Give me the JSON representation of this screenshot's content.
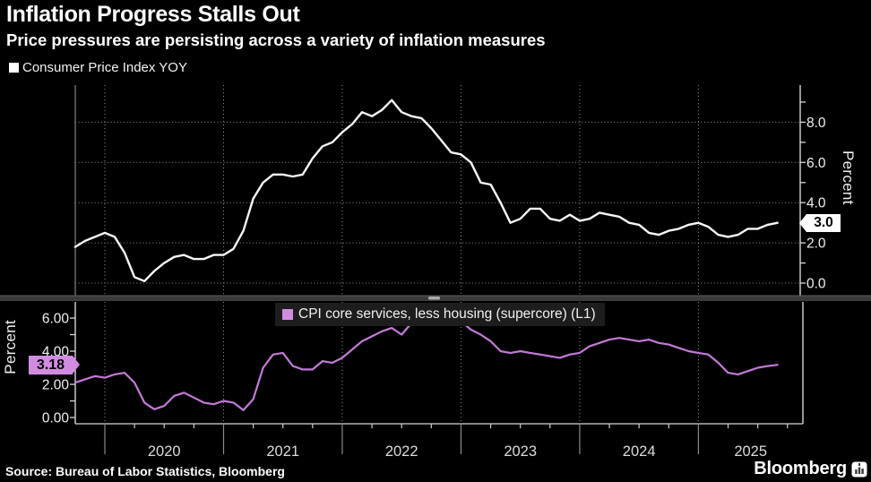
{
  "header": {
    "title": "Inflation Progress Stalls Out",
    "subtitle": "Price pressures are persisting across a variety of inflation measures"
  },
  "source": {
    "text": "Source: Bureau of Labor Statistics, Bloomberg"
  },
  "branding": {
    "wordmark": "Bloomberg",
    "icon": "bloomberg-terminal-icon"
  },
  "colors": {
    "background": "#000000",
    "cpi_line": "#f7f7f7",
    "supercore_line": "#c47ad8",
    "supercore_badge": "#d18ce2",
    "cpi_badge": "#ffffff",
    "grid": "#8f8f8f",
    "axis_line": "#d6d6d6",
    "left_spine_top_panel": "#6f6f6f",
    "separator": "#3a3a3a",
    "legend_bg": "#1d1d1d",
    "axis_text": "#f0f0f0",
    "year_text": "#dcdcdc"
  },
  "chart_data": [
    {
      "type": "line",
      "panel": "top",
      "series_name": "Consumer Price Index YOY",
      "frequency": "monthly",
      "x_start": "2019-10",
      "x_end": "2025-09",
      "x_tick_years": [
        "2020",
        "2021",
        "2022",
        "2023",
        "2024",
        "2025"
      ],
      "values": [
        1.8,
        2.1,
        2.3,
        2.5,
        2.3,
        1.5,
        0.3,
        0.1,
        0.6,
        1.0,
        1.3,
        1.4,
        1.2,
        1.2,
        1.4,
        1.4,
        1.7,
        2.6,
        4.2,
        5.0,
        5.4,
        5.4,
        5.3,
        5.4,
        6.2,
        6.8,
        7.0,
        7.5,
        7.9,
        8.5,
        8.3,
        8.6,
        9.1,
        8.5,
        8.3,
        8.2,
        7.7,
        7.1,
        6.5,
        6.4,
        6.0,
        5.0,
        4.9,
        4.0,
        3.0,
        3.2,
        3.7,
        3.7,
        3.2,
        3.1,
        3.4,
        3.1,
        3.2,
        3.5,
        3.4,
        3.3,
        3.0,
        2.9,
        2.5,
        2.4,
        2.6,
        2.7,
        2.9,
        3.0,
        2.8,
        2.4,
        2.3,
        2.4,
        2.7,
        2.7,
        2.9,
        3.0
      ],
      "last_value_label": "3.0",
      "ylabel": "Percent",
      "ylabel_side": "right",
      "axis_side": "right",
      "ylim": [
        -0.8,
        9.8
      ],
      "yticks": [
        0,
        2,
        4,
        6,
        8
      ],
      "ytick_labels": [
        "0.0",
        "2.0",
        "4.0",
        "6.0",
        "8.0"
      ],
      "minor_ytick_step": 1,
      "grid": "horizontal-and-vertical-dotted",
      "legend_position": "top-left",
      "line_color": "#f7f7f7"
    },
    {
      "type": "line",
      "panel": "bottom",
      "series_name": "CPI core services, less housing (supercore) (L1)",
      "frequency": "monthly",
      "x_start": "2019-10",
      "x_end": "2025-09",
      "x_tick_years": [
        "2020",
        "2021",
        "2022",
        "2023",
        "2024",
        "2025"
      ],
      "values": [
        2.1,
        2.3,
        2.5,
        2.4,
        2.6,
        2.7,
        2.1,
        0.9,
        0.5,
        0.7,
        1.3,
        1.5,
        1.2,
        0.9,
        0.8,
        1.0,
        0.9,
        0.45,
        1.1,
        3.0,
        3.8,
        3.9,
        3.1,
        2.9,
        2.9,
        3.4,
        3.3,
        3.6,
        4.1,
        4.6,
        4.9,
        5.2,
        5.4,
        5.0,
        5.7,
        6.3,
        6.5,
        6.3,
        6.1,
        5.8,
        5.3,
        5.0,
        4.6,
        4.0,
        3.9,
        4.0,
        3.9,
        3.8,
        3.7,
        3.6,
        3.8,
        3.9,
        4.3,
        4.5,
        4.7,
        4.8,
        4.7,
        4.6,
        4.7,
        4.5,
        4.4,
        4.2,
        4.0,
        3.9,
        3.8,
        3.3,
        2.7,
        2.6,
        2.8,
        3.0,
        3.1,
        3.18
      ],
      "last_value_label": "3.18",
      "ylabel": "Percent",
      "ylabel_side": "left",
      "axis_side": "left",
      "ylim": [
        -0.4,
        7.0
      ],
      "yticks": [
        0,
        2,
        4,
        6
      ],
      "ytick_labels": [
        "0.00",
        "2.00",
        "4.00",
        "6.00"
      ],
      "minor_ytick_step": 1,
      "grid": "vertical-dotted",
      "legend_position": "top-center",
      "line_color": "#c47ad8"
    }
  ]
}
